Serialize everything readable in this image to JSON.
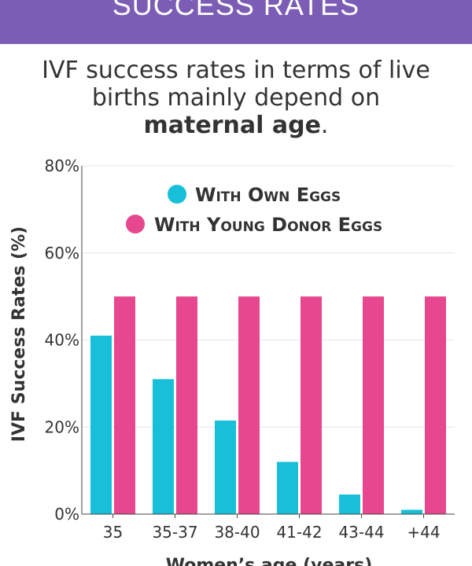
{
  "banner": {
    "title": "SUCCESS RATES"
  },
  "intro": {
    "line1": "IVF success rates in terms of live",
    "line2": "births mainly depend on",
    "bold": "maternal age",
    "end": "."
  },
  "colors": {
    "banner": "#7b5db5",
    "own": "#17c0d8",
    "donor": "#e6478e"
  },
  "chart_data": {
    "type": "bar",
    "categories": [
      "35",
      "35-37",
      "38-40",
      "41-42",
      "43-44",
      "+44"
    ],
    "series": [
      {
        "name": "With Own Eggs",
        "values": [
          41,
          31,
          21.5,
          12,
          4.5,
          1
        ]
      },
      {
        "name": "With Young Donor Eggs",
        "values": [
          50,
          50,
          50,
          50,
          50,
          50
        ]
      }
    ],
    "yticks": [
      "0%",
      "20%",
      "40%",
      "60%",
      "80%"
    ],
    "ylim": [
      0,
      80
    ],
    "ylabel": "IVF Success Rates (%)",
    "xlabel": "Women’s age (years)",
    "legend_position": "top-right",
    "grid": true
  }
}
